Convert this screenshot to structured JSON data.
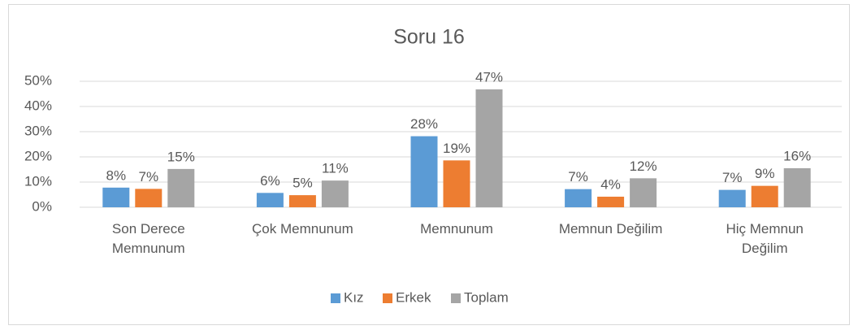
{
  "chart_data": {
    "type": "bar",
    "title": "Soru 16",
    "categories": [
      "Son Derece Memnunum",
      "Çok Memnunum",
      "Memnunum",
      "Memnun Değilim",
      "Hiç Memnun Değilim"
    ],
    "series": [
      {
        "name": "Kız",
        "color": "#5b9bd5",
        "values": [
          7.8,
          5.7,
          28.2,
          7.2,
          6.9
        ],
        "value_labels": [
          "8%",
          "6%",
          "28%",
          "7%",
          "7%"
        ]
      },
      {
        "name": "Erkek",
        "color": "#ed7d31",
        "values": [
          7.3,
          4.8,
          18.6,
          4.2,
          8.5
        ],
        "value_labels": [
          "7%",
          "5%",
          "19%",
          "4%",
          "9%"
        ]
      },
      {
        "name": "Toplam",
        "color": "#a5a5a5",
        "values": [
          15.2,
          10.6,
          46.8,
          11.5,
          15.5
        ],
        "value_labels": [
          "15%",
          "11%",
          "47%",
          "12%",
          "16%"
        ]
      }
    ],
    "ylim": [
      0,
      50
    ],
    "yticks": [
      {
        "value": 0,
        "label": "0%"
      },
      {
        "value": 10,
        "label": "10%"
      },
      {
        "value": 20,
        "label": "20%"
      },
      {
        "value": 30,
        "label": "30%"
      },
      {
        "value": 40,
        "label": "40%"
      },
      {
        "value": 50,
        "label": "50%"
      }
    ],
    "grid": true,
    "legend": "bottom"
  }
}
